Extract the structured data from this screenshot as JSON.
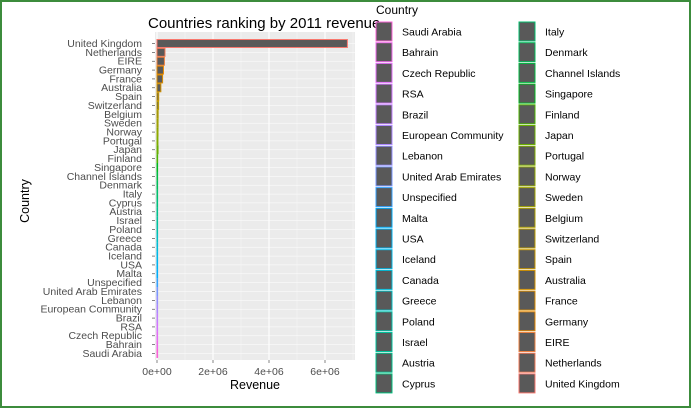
{
  "chart_data": {
    "type": "bar",
    "orientation": "horizontal",
    "title": "Countries ranking by 2011 revenue",
    "xlabel": "Revenue",
    "ylabel": "Country",
    "xlim": [
      0,
      7000000
    ],
    "x_ticks": [
      {
        "value": 0,
        "label": "0e+00"
      },
      {
        "value": 2000000,
        "label": "2e+06"
      },
      {
        "value": 4000000,
        "label": "4e+06"
      },
      {
        "value": 6000000,
        "label": "6e+06"
      }
    ],
    "grid": true,
    "bar_fill": "#595959",
    "panel_background": "#ebebeb",
    "categories": [
      "United Kingdom",
      "Netherlands",
      "EIRE",
      "Germany",
      "France",
      "Australia",
      "Spain",
      "Switzerland",
      "Belgium",
      "Sweden",
      "Norway",
      "Portugal",
      "Japan",
      "Finland",
      "Singapore",
      "Channel Islands",
      "Denmark",
      "Italy",
      "Cyprus",
      "Austria",
      "Israel",
      "Poland",
      "Greece",
      "Canada",
      "Iceland",
      "USA",
      "Malta",
      "Unspecified",
      "United Arab Emirates",
      "Lebanon",
      "European Community",
      "Brazil",
      "RSA",
      "Czech Republic",
      "Bahrain",
      "Saudi Arabia"
    ],
    "values": [
      6800000,
      285000,
      265000,
      230000,
      200000,
      138000,
      61000,
      57000,
      41000,
      38000,
      36000,
      33000,
      37000,
      23000,
      21000,
      20000,
      19000,
      17000,
      13000,
      10000,
      8000,
      7300,
      4700,
      3700,
      4300,
      1700,
      2500,
      2700,
      1900,
      1700,
      1300,
      1100,
      1000,
      700,
      550,
      130
    ],
    "colors": [
      "#f8766d",
      "#f37b59",
      "#ed8141",
      "#e58700",
      "#dc8d00",
      "#d39200",
      "#c99800",
      "#bd9d00",
      "#b0a100",
      "#a3a500",
      "#93aa00",
      "#81ad00",
      "#6bb100",
      "#4cb501",
      "#00b81f",
      "#00ba42",
      "#00bc59",
      "#00be6c",
      "#00bf7d",
      "#00c08d",
      "#00c19c",
      "#00c1aa",
      "#00bfc4",
      "#00bcd8",
      "#00b8e7",
      "#00b3f2",
      "#00adfa",
      "#35a2ff",
      "#7997ff",
      "#9590ff",
      "#ad88ff",
      "#c280ff",
      "#d376ff",
      "#e26ef7",
      "#ef67eb",
      "#fb61d7"
    ],
    "legend": {
      "title": "Country",
      "placement": "right",
      "columns": [
        [
          "Saudi Arabia",
          "Bahrain",
          "Czech Republic",
          "RSA",
          "Brazil",
          "European Community",
          "Lebanon",
          "United Arab Emirates",
          "Unspecified",
          "Malta",
          "USA",
          "Iceland",
          "Canada",
          "Greece",
          "Poland",
          "Israel",
          "Austria",
          "Cyprus"
        ],
        [
          "Italy",
          "Denmark",
          "Channel Islands",
          "Singapore",
          "Finland",
          "Japan",
          "Portugal",
          "Norway",
          "Sweden",
          "Belgium",
          "Switzerland",
          "Spain",
          "Australia",
          "France",
          "Germany",
          "EIRE",
          "Netherlands",
          "United Kingdom"
        ]
      ]
    }
  }
}
